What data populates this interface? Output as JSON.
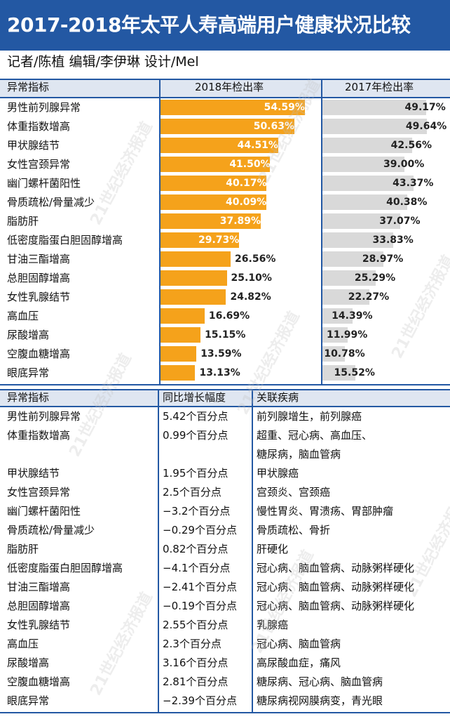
{
  "header": {
    "title": "2017-2018年太平人寿高端用户健康状况比较"
  },
  "byline": "记者/陈植  编辑/李伊琳  设计/Mel",
  "watermark": "21世纪经济报道",
  "colors": {
    "header_bg": "#2358a3",
    "bar_2018": "#f5a21b",
    "bar_2017": "#d9d9d9",
    "table_header_bg": "#dfe6f1"
  },
  "chart_data": {
    "type": "bar",
    "orientation": "horizontal",
    "headers": [
      "异常指标",
      "2018年检出率",
      "2017年检出率"
    ],
    "categories": [
      "男性前列腺异常",
      "体重指数增高",
      "甲状腺结节",
      "女性宫颈异常",
      "幽门螺杆菌阳性",
      "骨质疏松/骨量减少",
      "脂肪肝",
      "低密度脂蛋白胆固醇增高",
      "甘油三酯增高",
      "总胆固醇增高",
      "女性乳腺结节",
      "高血压",
      "尿酸增高",
      "空腹血糖增高",
      "眼底异常"
    ],
    "series": [
      {
        "name": "2018年检出率",
        "values": [
          54.59,
          50.63,
          44.51,
          41.5,
          40.17,
          40.09,
          37.89,
          29.73,
          26.56,
          25.1,
          24.82,
          16.69,
          15.15,
          13.59,
          13.13
        ],
        "labels": [
          "54.59%",
          "50.63%",
          "44.51%",
          "41.50%",
          "40.17%",
          "40.09%",
          "37.89%",
          "29.73%",
          "26.56%",
          "25.10%",
          "24.82%",
          "16.69%",
          "15.15%",
          "13.59%",
          "13.13%"
        ]
      },
      {
        "name": "2017年检出率",
        "values": [
          49.17,
          49.64,
          42.56,
          39.0,
          43.37,
          40.38,
          37.07,
          33.83,
          28.97,
          25.29,
          22.27,
          14.39,
          11.99,
          10.78,
          15.52
        ],
        "labels": [
          "49.17%",
          "49.64%",
          "42.56%",
          "39.00%",
          "43.37%",
          "40.38%",
          "37.07%",
          "33.83%",
          "28.97%",
          "25.29%",
          "22.27%",
          "14.39%",
          "11.99%",
          "10.78%",
          "15.52%"
        ]
      }
    ],
    "xlim": [
      0,
      60
    ]
  },
  "table2": {
    "headers": [
      "异常指标",
      "同比增长幅度",
      "关联疾病"
    ],
    "rows": [
      {
        "indicator": "男性前列腺异常",
        "change": "5.42个百分点",
        "disease": [
          "前列腺增生，前列腺癌"
        ]
      },
      {
        "indicator": "体重指数增高",
        "change": "0.99个百分点",
        "disease": [
          "超重、冠心病、高血压、",
          "糖尿病，脑血管病"
        ]
      },
      {
        "indicator": "甲状腺结节",
        "change": "1.95个百分点",
        "disease": [
          "甲状腺癌"
        ]
      },
      {
        "indicator": "女性宫颈异常",
        "change": "2.5个百分点",
        "disease": [
          "宫颈炎、宫颈癌"
        ]
      },
      {
        "indicator": "幽门螺杆菌阳性",
        "change": "−3.2个百分点",
        "disease": [
          "慢性胃炎、胃溃疡、胃部肿瘤"
        ]
      },
      {
        "indicator": "骨质疏松/骨量减少",
        "change": "−0.29个百分点",
        "disease": [
          "骨质疏松、骨折"
        ]
      },
      {
        "indicator": "脂肪肝",
        "change": "0.82个百分点",
        "disease": [
          "肝硬化"
        ]
      },
      {
        "indicator": "低密度脂蛋白胆固醇增高",
        "change": "−4.1个百分点",
        "disease": [
          "冠心病、脑血管病、动脉粥样硬化"
        ]
      },
      {
        "indicator": "甘油三酯增高",
        "change": "−2.41个百分点",
        "disease": [
          "冠心病、脑血管病、动脉粥样硬化"
        ]
      },
      {
        "indicator": "总胆固醇增高",
        "change": "−0.19个百分点",
        "disease": [
          "冠心病、脑血管病、动脉粥样硬化"
        ]
      },
      {
        "indicator": "女性乳腺结节",
        "change": "2.55个百分点",
        "disease": [
          "乳腺癌"
        ]
      },
      {
        "indicator": "高血压",
        "change": "2.3个百分点",
        "disease": [
          "冠心病、脑血管病"
        ]
      },
      {
        "indicator": "尿酸增高",
        "change": "3.16个百分点",
        "disease": [
          "高尿酸血症，痛风"
        ]
      },
      {
        "indicator": "空腹血糖增高",
        "change": "2.81个百分点",
        "disease": [
          "糖尿病、冠心病、脑血管病"
        ]
      },
      {
        "indicator": "眼底异常",
        "change": "−2.39个百分点",
        "disease": [
          "糖尿病视网膜病变，青光眼"
        ]
      }
    ]
  }
}
